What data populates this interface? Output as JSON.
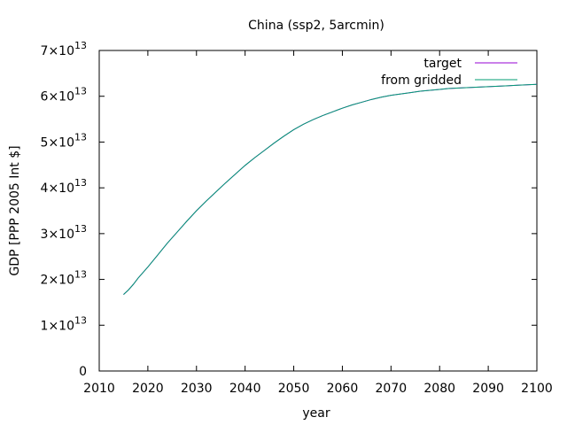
{
  "chart_data": {
    "type": "line",
    "title": "China (ssp2, 5arcmin)",
    "xlabel": "year",
    "ylabel": "GDP [PPP 2005 Int $]",
    "xlim": [
      2010,
      2100
    ],
    "ylim": [
      0,
      7
    ],
    "y_exponent": "13",
    "y_mantissa_suffix": "×10",
    "xticks": [
      2010,
      2020,
      2030,
      2040,
      2050,
      2060,
      2070,
      2080,
      2090,
      2100
    ],
    "yticks": [
      0,
      1,
      2,
      3,
      4,
      5,
      6,
      7
    ],
    "y_unit_note": "values in units of 1e13",
    "legend_position": "top-right",
    "grid": false,
    "series": [
      {
        "name": "target",
        "color": "#9400d3",
        "x": [
          2015,
          2016,
          2017,
          2018,
          2020,
          2022,
          2024,
          2026,
          2028,
          2030,
          2032,
          2034,
          2036,
          2038,
          2040,
          2042,
          2044,
          2046,
          2048,
          2050,
          2052,
          2054,
          2056,
          2058,
          2060,
          2062,
          2064,
          2066,
          2068,
          2070,
          2072,
          2074,
          2076,
          2078,
          2080,
          2082,
          2084,
          2086,
          2088,
          2090,
          2092,
          2094,
          2096,
          2098,
          2100
        ],
        "values": [
          1.67,
          1.77,
          1.89,
          2.03,
          2.27,
          2.53,
          2.79,
          3.03,
          3.27,
          3.5,
          3.71,
          3.91,
          4.11,
          4.3,
          4.49,
          4.66,
          4.82,
          4.98,
          5.13,
          5.27,
          5.39,
          5.49,
          5.58,
          5.66,
          5.74,
          5.81,
          5.87,
          5.93,
          5.98,
          6.02,
          6.05,
          6.08,
          6.11,
          6.13,
          6.15,
          6.17,
          6.18,
          6.19,
          6.2,
          6.21,
          6.22,
          6.23,
          6.24,
          6.25,
          6.26
        ]
      },
      {
        "name": "from gridded",
        "color": "#009e73",
        "x": [
          2015,
          2016,
          2017,
          2018,
          2020,
          2022,
          2024,
          2026,
          2028,
          2030,
          2032,
          2034,
          2036,
          2038,
          2040,
          2042,
          2044,
          2046,
          2048,
          2050,
          2052,
          2054,
          2056,
          2058,
          2060,
          2062,
          2064,
          2066,
          2068,
          2070,
          2072,
          2074,
          2076,
          2078,
          2080,
          2082,
          2084,
          2086,
          2088,
          2090,
          2092,
          2094,
          2096,
          2098,
          2100
        ],
        "values": [
          1.67,
          1.77,
          1.89,
          2.03,
          2.27,
          2.53,
          2.79,
          3.03,
          3.27,
          3.5,
          3.71,
          3.91,
          4.11,
          4.3,
          4.49,
          4.66,
          4.82,
          4.98,
          5.13,
          5.27,
          5.39,
          5.49,
          5.58,
          5.66,
          5.74,
          5.81,
          5.87,
          5.93,
          5.98,
          6.02,
          6.05,
          6.08,
          6.11,
          6.13,
          6.15,
          6.17,
          6.18,
          6.19,
          6.2,
          6.21,
          6.22,
          6.23,
          6.24,
          6.25,
          6.26
        ]
      }
    ]
  }
}
